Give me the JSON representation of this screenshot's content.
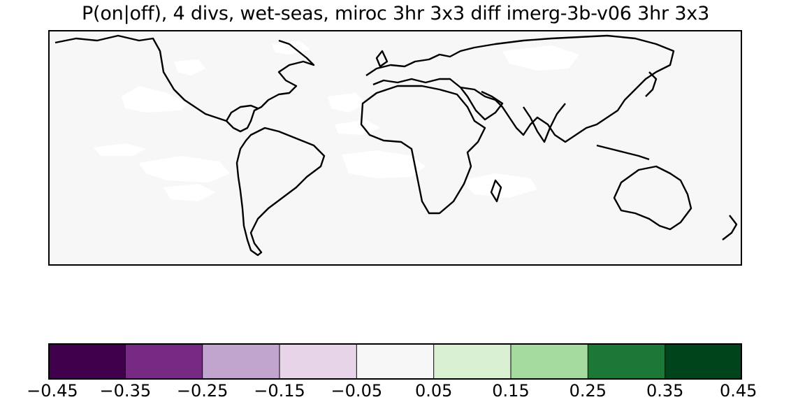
{
  "title": "P(on|off), 4 divs, wet-seas,  miroc 3hr 3x3 diff imerg-3b-v06 3hr 3x3",
  "map": {
    "projection": "cylindrical",
    "lon_range": [
      -180,
      180
    ],
    "lat_range": [
      -60,
      60
    ],
    "coastlines": true,
    "background_value_color": "#f7f7f7",
    "ocean_patch_color": "#ffffff"
  },
  "colorbar": {
    "colormap": "PRGn",
    "boundaries": [
      -0.45,
      -0.35,
      -0.25,
      -0.15,
      -0.05,
      0.05,
      0.15,
      0.25,
      0.35,
      0.45
    ],
    "colors": [
      "#40004b",
      "#762a83",
      "#c2a5cf",
      "#e7d4e8",
      "#f7f7f7",
      "#d9f0d3",
      "#a6dba0",
      "#1b7837",
      "#00441b"
    ],
    "tick_labels": [
      "−0.45",
      "−0.35",
      "−0.25",
      "−0.15",
      "−0.05",
      "0.05",
      "0.15",
      "0.25",
      "0.35",
      "0.45"
    ]
  }
}
